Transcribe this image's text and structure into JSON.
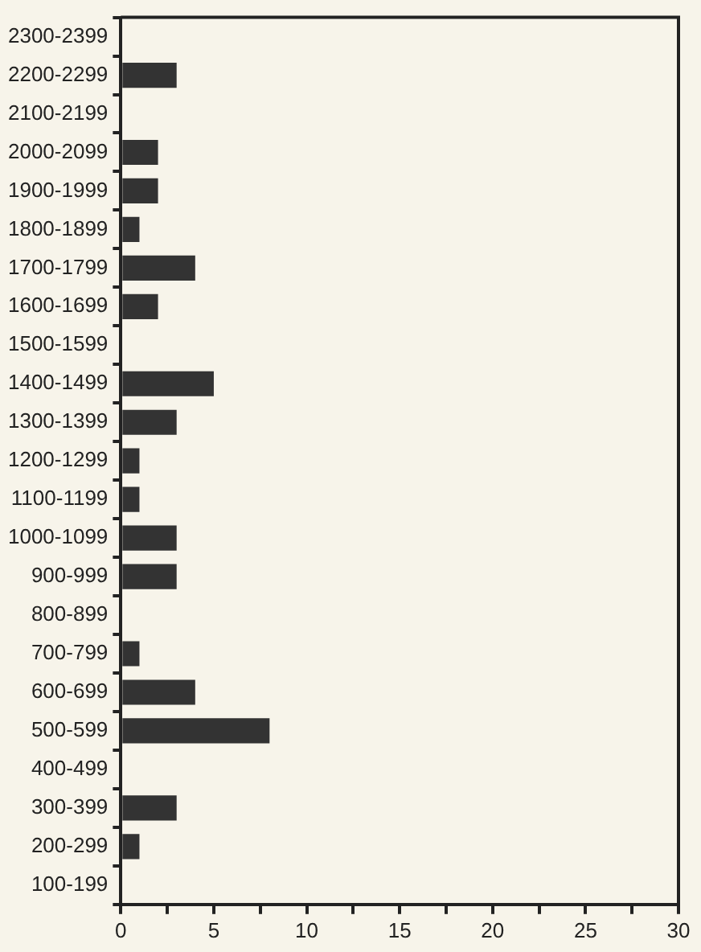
{
  "chart_data": {
    "type": "bar",
    "orientation": "horizontal",
    "categories": [
      "2300-2399",
      "2200-2299",
      "2100-2199",
      "2000-2099",
      "1900-1999",
      "1800-1899",
      "1700-1799",
      "1600-1699",
      "1500-1599",
      "1400-1499",
      "1300-1399",
      "1200-1299",
      "1100-1199",
      "1000-1099",
      "900-999",
      "800-899",
      "700-799",
      "600-699",
      "500-599",
      "400-499",
      "300-399",
      "200-299",
      "100-199"
    ],
    "values": [
      0,
      3,
      0,
      2,
      2,
      1,
      4,
      2,
      0,
      5,
      3,
      1,
      1,
      3,
      3,
      0,
      1,
      4,
      8,
      0,
      3,
      1,
      0
    ],
    "color": "#333333",
    "xlim": [
      0,
      30
    ],
    "xticks": [
      0,
      {
        "value": 2.5,
        "label": null
      },
      5,
      {
        "value": 7.5,
        "label": null
      },
      10,
      {
        "value": 12.5,
        "label": null
      },
      15,
      {
        "value": 17.5,
        "label": null
      },
      20,
      {
        "value": 22.5,
        "label": null
      },
      25,
      {
        "value": 27.5,
        "label": null
      },
      30
    ],
    "grid": false,
    "legend": false
  }
}
